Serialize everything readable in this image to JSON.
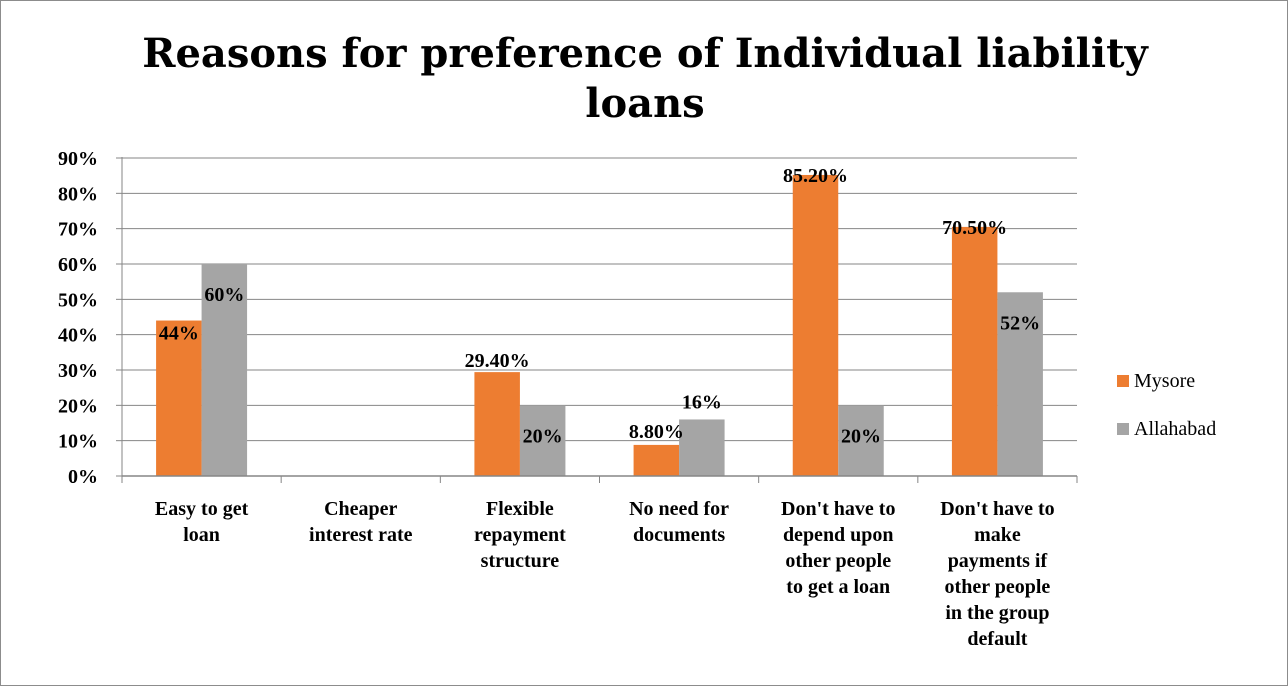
{
  "chart_data": {
    "type": "bar",
    "title": "Reasons for preference of  Individual liability loans",
    "title_lines": [
      "Reasons for preference of  Individual liability",
      "loans"
    ],
    "categories": [
      [
        "Easy to get",
        "loan"
      ],
      [
        "Cheaper",
        "interest rate"
      ],
      [
        "Flexible",
        "repayment",
        "structure"
      ],
      [
        "No need for",
        "documents"
      ],
      [
        "Don't have to",
        "depend upon",
        "other people",
        "to get a loan"
      ],
      [
        "Don't have to",
        "make",
        "payments if",
        "other people",
        "in the group",
        "default"
      ]
    ],
    "series": [
      {
        "name": "Mysore",
        "color": "#ed7d31",
        "values": [
          0.44,
          0,
          0.294,
          0.088,
          0.852,
          0.705
        ],
        "labels": [
          "44%",
          null,
          "29.40%",
          "8.80%",
          "85.20%",
          "70.50%"
        ]
      },
      {
        "name": "Allahabad",
        "color": "#a5a5a5",
        "values": [
          0.6,
          0,
          0.2,
          0.16,
          0.2,
          0.52
        ],
        "labels": [
          "60%",
          null,
          "20%",
          "16%",
          "20%",
          "52%"
        ]
      }
    ],
    "ylim": [
      0,
      0.9
    ],
    "yticks": [
      "0%",
      "10%",
      "20%",
      "30%",
      "40%",
      "50%",
      "60%",
      "70%",
      "80%",
      "90%"
    ],
    "grid": true,
    "legend": "right"
  }
}
